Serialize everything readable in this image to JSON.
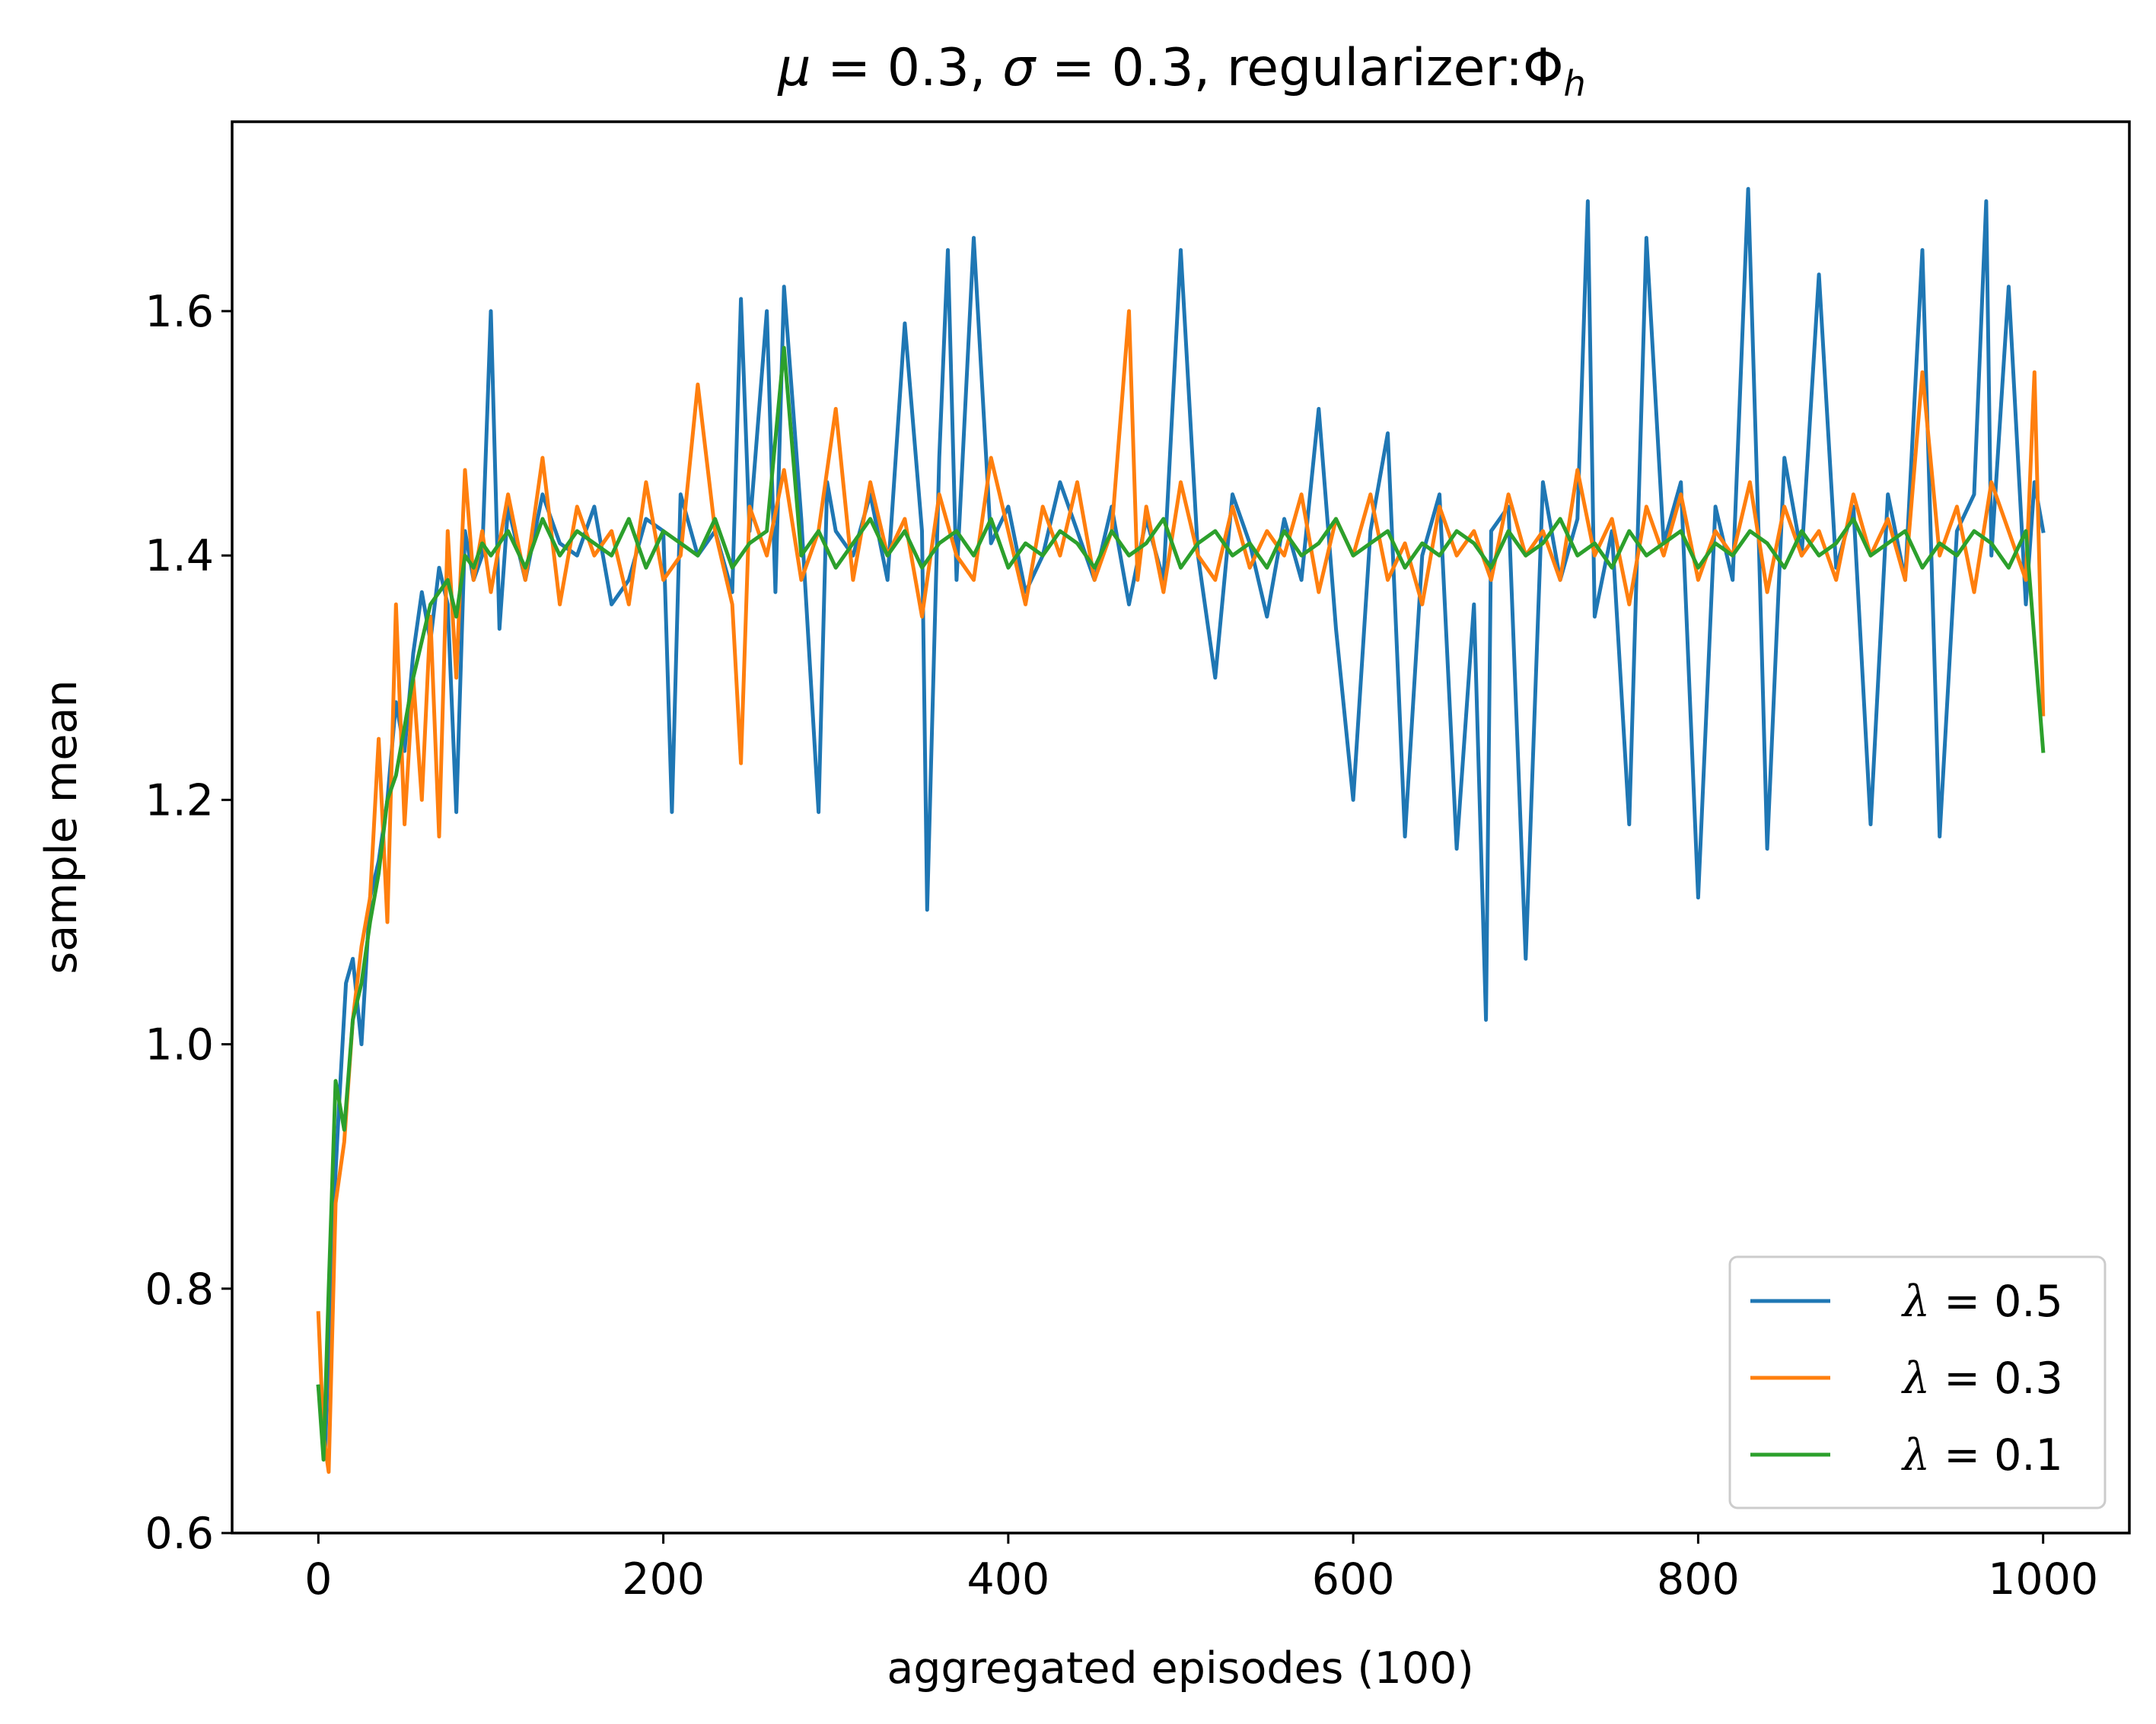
{
  "chart_data": {
    "type": "line",
    "title": "μ = 0.3, σ = 0.3, regularizer:Φh",
    "title_parts": {
      "mu": "μ",
      "mu_value": " = 0.3, ",
      "sigma": "σ",
      "sigma_value": " = 0.3, regularizer:",
      "phi": "Φ",
      "phi_sub": "h"
    },
    "xlabel": "aggregated episodes (100)",
    "ylabel": "sample mean",
    "xlim": [
      -50,
      1050
    ],
    "ylim": [
      0.6,
      1.755
    ],
    "x_ticks": [
      0,
      200,
      400,
      600,
      800,
      1000
    ],
    "x_tick_labels": [
      "0",
      "200",
      "400",
      "600",
      "800",
      "1000"
    ],
    "y_ticks": [
      0.6,
      0.8,
      1.0,
      1.2,
      1.4,
      1.6
    ],
    "y_tick_labels": [
      "0.6",
      "0.8",
      "1.0",
      "1.2",
      "1.4",
      "1.6"
    ],
    "grid": false,
    "legend_position": "bottom-right",
    "series": [
      {
        "name": "λ = 0.5",
        "lambda_symbol": "λ",
        "lambda_value": " = 0.5",
        "color": "#1f77b4",
        "x": [
          0,
          4,
          8,
          12,
          16,
          20,
          25,
          30,
          35,
          40,
          45,
          50,
          55,
          60,
          65,
          70,
          75,
          80,
          85,
          90,
          95,
          100,
          105,
          110,
          120,
          130,
          140,
          150,
          160,
          170,
          180,
          190,
          200,
          205,
          210,
          220,
          230,
          240,
          245,
          250,
          260,
          265,
          270,
          280,
          290,
          295,
          300,
          310,
          320,
          330,
          340,
          350,
          353,
          360,
          365,
          370,
          380,
          390,
          400,
          410,
          420,
          430,
          440,
          450,
          460,
          470,
          480,
          490,
          500,
          510,
          520,
          530,
          540,
          550,
          560,
          570,
          580,
          590,
          600,
          610,
          620,
          630,
          640,
          650,
          660,
          670,
          677,
          680,
          690,
          700,
          710,
          720,
          730,
          736,
          740,
          750,
          760,
          770,
          780,
          790,
          800,
          810,
          820,
          829,
          835,
          840,
          850,
          860,
          870,
          880,
          890,
          900,
          910,
          920,
          930,
          940,
          950,
          960,
          967,
          970,
          980,
          990,
          995,
          1000
        ],
        "values": [
          0.72,
          0.67,
          0.84,
          0.95,
          1.05,
          1.07,
          1.0,
          1.12,
          1.15,
          1.2,
          1.28,
          1.24,
          1.32,
          1.37,
          1.33,
          1.39,
          1.36,
          1.19,
          1.42,
          1.38,
          1.4,
          1.6,
          1.34,
          1.44,
          1.38,
          1.45,
          1.41,
          1.4,
          1.44,
          1.36,
          1.38,
          1.43,
          1.42,
          1.19,
          1.45,
          1.4,
          1.42,
          1.37,
          1.61,
          1.42,
          1.6,
          1.37,
          1.62,
          1.43,
          1.19,
          1.46,
          1.42,
          1.4,
          1.45,
          1.38,
          1.59,
          1.42,
          1.11,
          1.48,
          1.65,
          1.38,
          1.66,
          1.41,
          1.44,
          1.37,
          1.4,
          1.46,
          1.42,
          1.38,
          1.44,
          1.36,
          1.43,
          1.38,
          1.65,
          1.4,
          1.3,
          1.45,
          1.41,
          1.35,
          1.43,
          1.38,
          1.52,
          1.34,
          1.2,
          1.42,
          1.5,
          1.17,
          1.4,
          1.45,
          1.16,
          1.36,
          1.02,
          1.42,
          1.44,
          1.07,
          1.46,
          1.38,
          1.43,
          1.69,
          1.35,
          1.42,
          1.18,
          1.66,
          1.41,
          1.46,
          1.12,
          1.44,
          1.38,
          1.7,
          1.42,
          1.16,
          1.48,
          1.4,
          1.63,
          1.39,
          1.44,
          1.18,
          1.45,
          1.38,
          1.65,
          1.17,
          1.42,
          1.45,
          1.69,
          1.4,
          1.62,
          1.36,
          1.46,
          1.42
        ]
      },
      {
        "name": "λ = 0.3",
        "lambda_symbol": "λ",
        "lambda_value": " = 0.3",
        "color": "#ff7f0e",
        "x": [
          0,
          3,
          6,
          10,
          15,
          20,
          25,
          30,
          35,
          40,
          45,
          50,
          55,
          60,
          65,
          70,
          75,
          80,
          85,
          90,
          95,
          100,
          110,
          120,
          130,
          140,
          150,
          160,
          170,
          180,
          190,
          200,
          210,
          220,
          230,
          240,
          245,
          250,
          260,
          270,
          280,
          290,
          300,
          310,
          320,
          330,
          340,
          350,
          360,
          370,
          380,
          390,
          400,
          410,
          420,
          430,
          440,
          450,
          460,
          470,
          475,
          480,
          490,
          500,
          510,
          520,
          530,
          540,
          550,
          560,
          570,
          580,
          590,
          600,
          610,
          620,
          630,
          640,
          650,
          660,
          670,
          680,
          690,
          700,
          710,
          720,
          730,
          740,
          750,
          760,
          770,
          780,
          790,
          800,
          810,
          820,
          830,
          840,
          850,
          860,
          870,
          880,
          890,
          900,
          910,
          920,
          930,
          940,
          950,
          960,
          970,
          980,
          990,
          995,
          1000
        ],
        "values": [
          0.78,
          0.68,
          0.65,
          0.87,
          0.92,
          1.02,
          1.08,
          1.12,
          1.25,
          1.1,
          1.36,
          1.18,
          1.3,
          1.2,
          1.35,
          1.17,
          1.42,
          1.3,
          1.47,
          1.38,
          1.42,
          1.37,
          1.45,
          1.38,
          1.48,
          1.36,
          1.44,
          1.4,
          1.42,
          1.36,
          1.46,
          1.38,
          1.4,
          1.54,
          1.42,
          1.36,
          1.23,
          1.44,
          1.4,
          1.47,
          1.38,
          1.42,
          1.52,
          1.38,
          1.46,
          1.4,
          1.43,
          1.35,
          1.45,
          1.4,
          1.38,
          1.48,
          1.42,
          1.36,
          1.44,
          1.4,
          1.46,
          1.38,
          1.42,
          1.6,
          1.38,
          1.44,
          1.37,
          1.46,
          1.4,
          1.38,
          1.44,
          1.39,
          1.42,
          1.4,
          1.45,
          1.37,
          1.43,
          1.4,
          1.45,
          1.38,
          1.41,
          1.36,
          1.44,
          1.4,
          1.42,
          1.38,
          1.45,
          1.4,
          1.42,
          1.38,
          1.47,
          1.4,
          1.43,
          1.36,
          1.44,
          1.4,
          1.45,
          1.38,
          1.42,
          1.4,
          1.46,
          1.37,
          1.44,
          1.4,
          1.42,
          1.38,
          1.45,
          1.4,
          1.43,
          1.38,
          1.55,
          1.4,
          1.44,
          1.37,
          1.46,
          1.42,
          1.38,
          1.55,
          1.27
        ]
      },
      {
        "name": "λ = 0.1",
        "lambda_symbol": "λ",
        "lambda_value": " = 0.1",
        "color": "#2ca02c",
        "x": [
          0,
          3,
          6,
          10,
          15,
          20,
          25,
          30,
          35,
          40,
          45,
          50,
          55,
          60,
          65,
          70,
          75,
          80,
          85,
          90,
          95,
          100,
          110,
          120,
          130,
          140,
          150,
          160,
          170,
          180,
          190,
          200,
          210,
          220,
          230,
          240,
          250,
          260,
          270,
          280,
          290,
          300,
          310,
          320,
          330,
          340,
          350,
          360,
          370,
          380,
          390,
          400,
          410,
          420,
          430,
          440,
          450,
          460,
          470,
          480,
          490,
          500,
          510,
          520,
          530,
          540,
          550,
          560,
          570,
          580,
          590,
          600,
          610,
          620,
          630,
          640,
          650,
          660,
          670,
          680,
          690,
          700,
          710,
          720,
          730,
          740,
          750,
          760,
          770,
          780,
          790,
          800,
          810,
          820,
          830,
          840,
          850,
          860,
          870,
          880,
          890,
          900,
          910,
          920,
          930,
          940,
          950,
          960,
          970,
          980,
          990,
          1000
        ],
        "values": [
          0.72,
          0.66,
          0.8,
          0.97,
          0.93,
          1.02,
          1.05,
          1.1,
          1.14,
          1.2,
          1.22,
          1.26,
          1.3,
          1.33,
          1.36,
          1.37,
          1.38,
          1.35,
          1.4,
          1.39,
          1.41,
          1.4,
          1.42,
          1.39,
          1.43,
          1.4,
          1.42,
          1.41,
          1.4,
          1.43,
          1.39,
          1.42,
          1.41,
          1.4,
          1.43,
          1.39,
          1.41,
          1.42,
          1.57,
          1.4,
          1.42,
          1.39,
          1.41,
          1.43,
          1.4,
          1.42,
          1.39,
          1.41,
          1.42,
          1.4,
          1.43,
          1.39,
          1.41,
          1.4,
          1.42,
          1.41,
          1.39,
          1.42,
          1.4,
          1.41,
          1.43,
          1.39,
          1.41,
          1.42,
          1.4,
          1.41,
          1.39,
          1.42,
          1.4,
          1.41,
          1.43,
          1.4,
          1.41,
          1.42,
          1.39,
          1.41,
          1.4,
          1.42,
          1.41,
          1.39,
          1.42,
          1.4,
          1.41,
          1.43,
          1.4,
          1.41,
          1.39,
          1.42,
          1.4,
          1.41,
          1.42,
          1.39,
          1.41,
          1.4,
          1.42,
          1.41,
          1.39,
          1.42,
          1.4,
          1.41,
          1.43,
          1.4,
          1.41,
          1.42,
          1.39,
          1.41,
          1.4,
          1.42,
          1.41,
          1.39,
          1.42,
          1.24
        ]
      }
    ]
  }
}
